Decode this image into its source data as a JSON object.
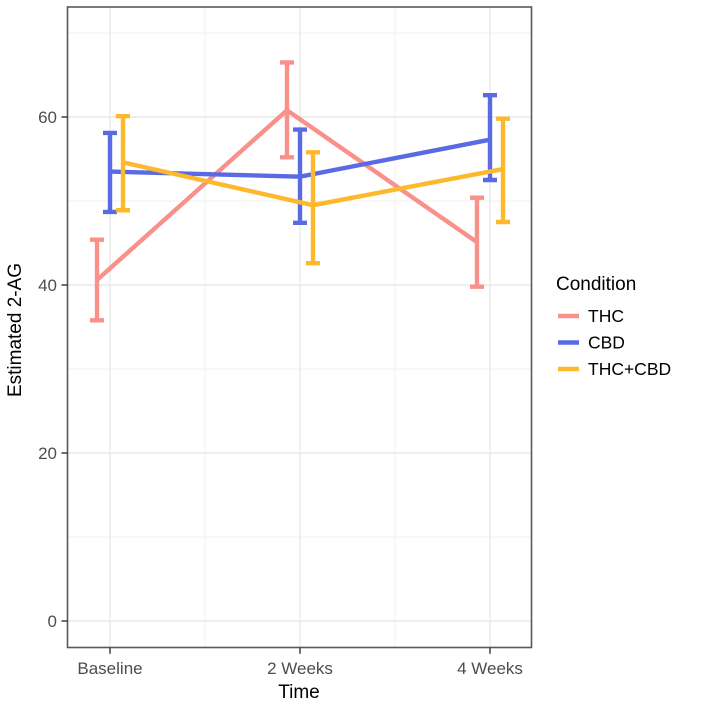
{
  "chart_data": {
    "type": "line",
    "title": "",
    "xlabel": "Time",
    "ylabel": "Estimated 2-AG",
    "legend_title": "Condition",
    "legend_position": "right",
    "grid": true,
    "categories": [
      "Baseline",
      "2 Weeks",
      "4 Weeks"
    ],
    "y_ticks": [
      0,
      20,
      40,
      60
    ],
    "y_minor_ticks": [
      10,
      30,
      50,
      70
    ],
    "ylim": [
      -3,
      73
    ],
    "series": [
      {
        "name": "THC",
        "color": "#F9908A",
        "values": [
          40.6,
          60.8,
          45.1
        ],
        "error_low": [
          35.8,
          55.2,
          39.8
        ],
        "error_high": [
          45.4,
          66.5,
          50.4
        ]
      },
      {
        "name": "CBD",
        "color": "#5A6AE5",
        "values": [
          53.5,
          52.9,
          57.3
        ],
        "error_low": [
          48.7,
          47.4,
          52.5
        ],
        "error_high": [
          58.1,
          58.5,
          62.6
        ]
      },
      {
        "name": "THC+CBD",
        "color": "#FCB92E",
        "values": [
          54.6,
          49.5,
          53.8
        ],
        "error_low": [
          48.9,
          42.6,
          47.5
        ],
        "error_high": [
          60.1,
          55.8,
          59.8
        ]
      }
    ]
  }
}
